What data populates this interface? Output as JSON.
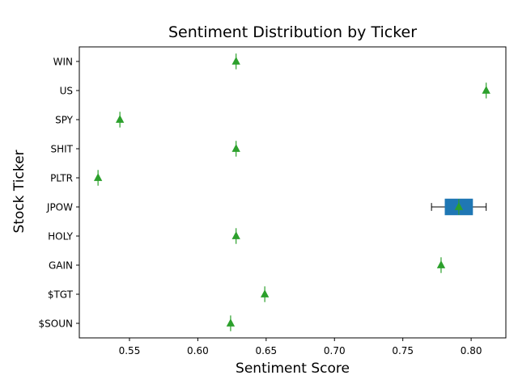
{
  "chart_data": {
    "type": "box",
    "orientation": "horizontal",
    "title": "Sentiment Distribution by Ticker",
    "xlabel": "Sentiment Score",
    "ylabel": "Stock Ticker",
    "xlim": [
      0.5133,
      0.8254
    ],
    "xticks": [
      0.55,
      0.6,
      0.65,
      0.7,
      0.75,
      0.8
    ],
    "xtick_labels": [
      "0.55",
      "0.60",
      "0.65",
      "0.70",
      "0.75",
      "0.80"
    ],
    "grid": false,
    "categories": [
      "$SOUN",
      "$TGT",
      "GAIN",
      "HOLY",
      "JPOW",
      "PLTR",
      "SHIT",
      "SPY",
      "US",
      "WIN"
    ],
    "boxes": [
      {
        "ticker": "$SOUN",
        "min": 0.624,
        "q1": 0.624,
        "median": 0.624,
        "q3": 0.624,
        "max": 0.624,
        "mean": 0.624
      },
      {
        "ticker": "$TGT",
        "min": 0.649,
        "q1": 0.649,
        "median": 0.649,
        "q3": 0.649,
        "max": 0.649,
        "mean": 0.649
      },
      {
        "ticker": "GAIN",
        "min": 0.778,
        "q1": 0.778,
        "median": 0.778,
        "q3": 0.778,
        "max": 0.778,
        "mean": 0.778
      },
      {
        "ticker": "HOLY",
        "min": 0.628,
        "q1": 0.628,
        "median": 0.628,
        "q3": 0.628,
        "max": 0.628,
        "mean": 0.628
      },
      {
        "ticker": "JPOW",
        "min": 0.771,
        "q1": 0.781,
        "median": 0.791,
        "q3": 0.801,
        "max": 0.811,
        "mean": 0.791
      },
      {
        "ticker": "PLTR",
        "min": 0.527,
        "q1": 0.527,
        "median": 0.527,
        "q3": 0.527,
        "max": 0.527,
        "mean": 0.527
      },
      {
        "ticker": "SHIT",
        "min": 0.628,
        "q1": 0.628,
        "median": 0.628,
        "q3": 0.628,
        "max": 0.628,
        "mean": 0.628
      },
      {
        "ticker": "SPY",
        "min": 0.543,
        "q1": 0.543,
        "median": 0.543,
        "q3": 0.543,
        "max": 0.543,
        "mean": 0.543
      },
      {
        "ticker": "US",
        "min": 0.811,
        "q1": 0.811,
        "median": 0.811,
        "q3": 0.811,
        "max": 0.811,
        "mean": 0.811
      },
      {
        "ticker": "WIN",
        "min": 0.628,
        "q1": 0.628,
        "median": 0.628,
        "q3": 0.628,
        "max": 0.628,
        "mean": 0.628
      }
    ],
    "colors": {
      "box_fill": "#1f77b4",
      "mean_marker": "#2ca02c",
      "whisker": "#000000",
      "median": "#2ca02c"
    }
  }
}
